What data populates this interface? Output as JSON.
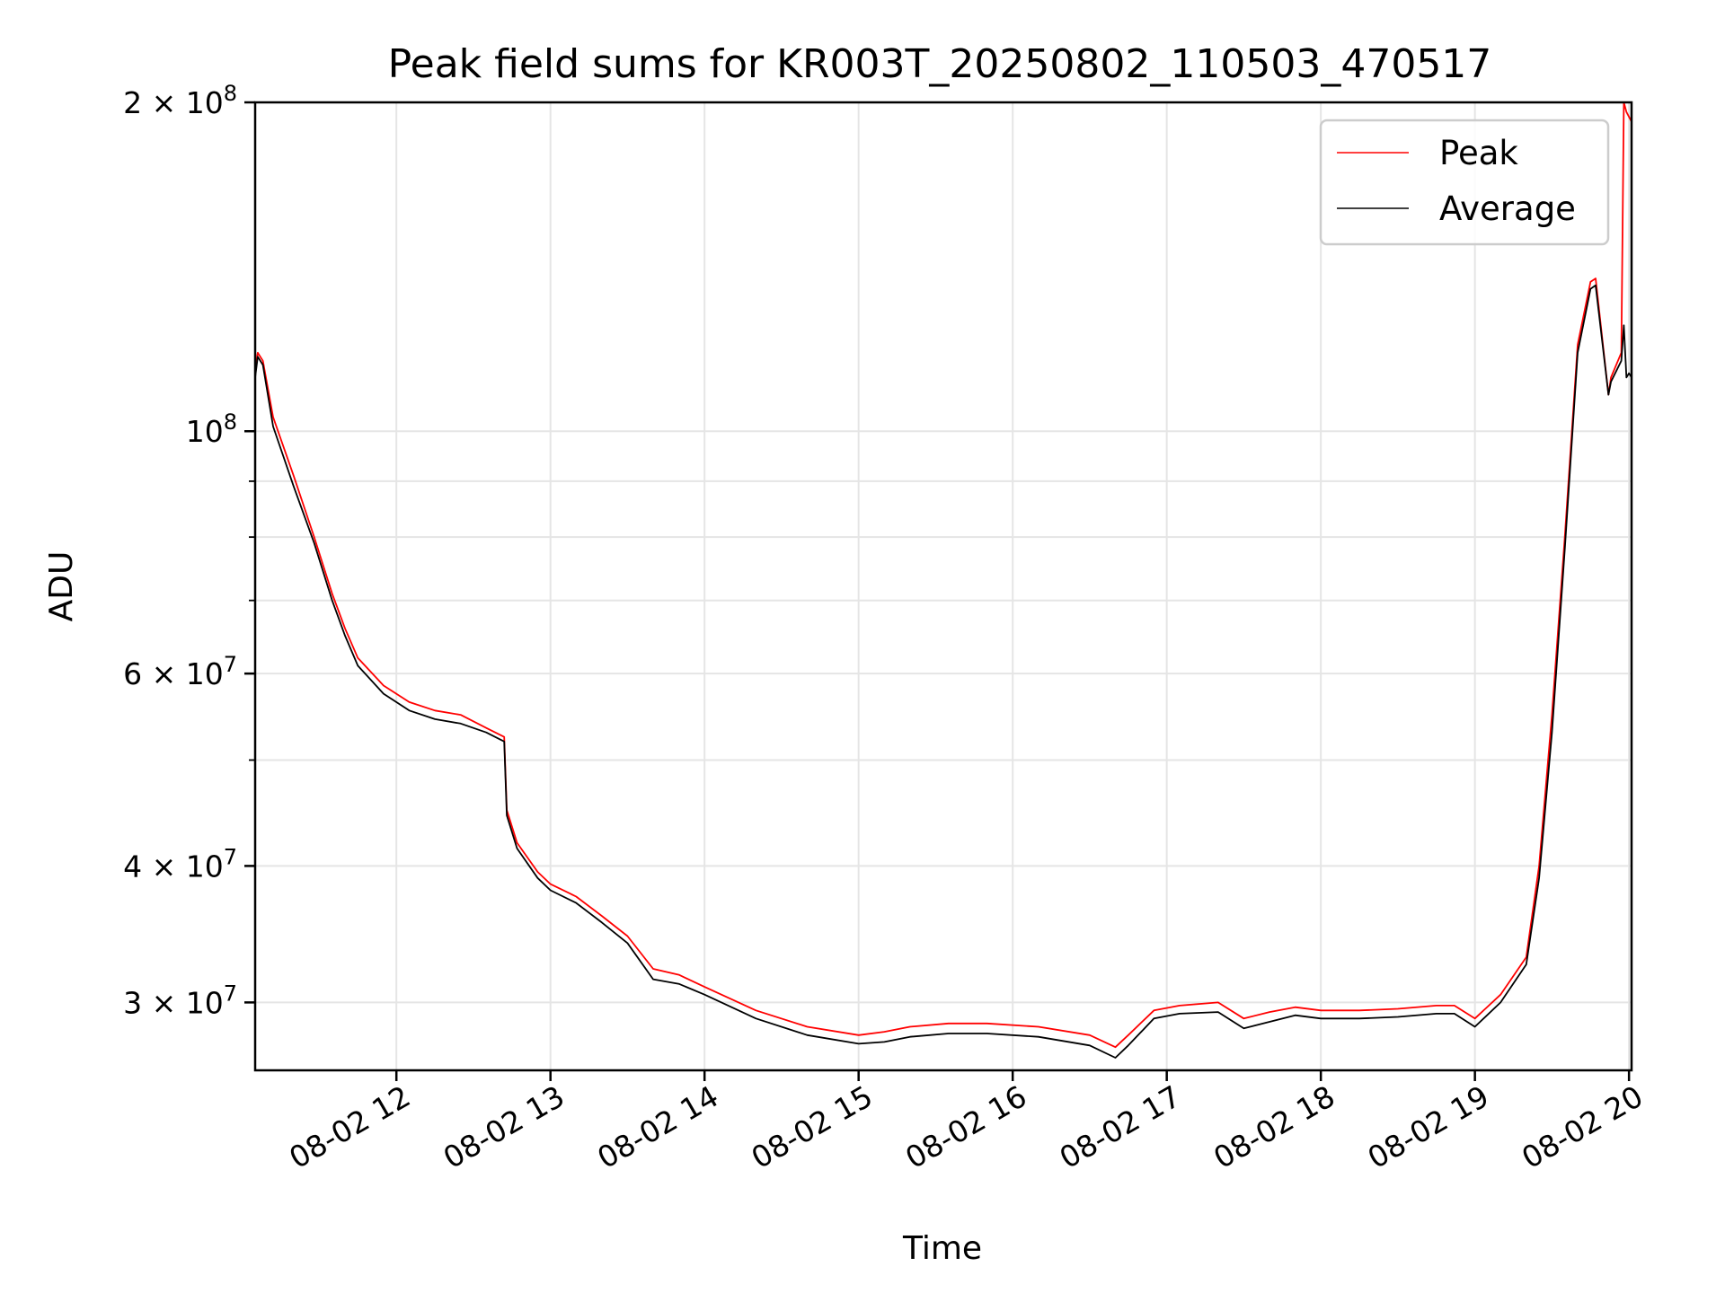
{
  "chart_data": {
    "type": "line",
    "title": "Peak field sums for KR003T_20250802_110503_470517",
    "xlabel": "Time",
    "ylabel": "ADU",
    "yscale": "log",
    "xlim": [
      "2025-08-02 11:05",
      "2025-08-02 20:01"
    ],
    "ylim": [
      26000000,
      200000000
    ],
    "grid": true,
    "legend_position": "top-right",
    "xticks": [
      {
        "value": "2025-08-02 12:00",
        "label": "08-02 12"
      },
      {
        "value": "2025-08-02 13:00",
        "label": "08-02 13"
      },
      {
        "value": "2025-08-02 14:00",
        "label": "08-02 14"
      },
      {
        "value": "2025-08-02 15:00",
        "label": "08-02 15"
      },
      {
        "value": "2025-08-02 16:00",
        "label": "08-02 16"
      },
      {
        "value": "2025-08-02 17:00",
        "label": "08-02 17"
      },
      {
        "value": "2025-08-02 18:00",
        "label": "08-02 18"
      },
      {
        "value": "2025-08-02 19:00",
        "label": "08-02 19"
      },
      {
        "value": "2025-08-02 20:00",
        "label": "08-02 20"
      }
    ],
    "yticks_major": [
      {
        "value": 30000000,
        "base": "3 × 10",
        "exp": "7"
      },
      {
        "value": 40000000,
        "base": "4 × 10",
        "exp": "7"
      },
      {
        "value": 60000000,
        "base": "6 × 10",
        "exp": "7"
      },
      {
        "value": 100000000,
        "base": "10",
        "exp": "8"
      },
      {
        "value": 200000000,
        "base": "2 × 10",
        "exp": "8"
      }
    ],
    "yticks_minor": [
      50000000,
      70000000,
      80000000,
      90000000
    ],
    "series": [
      {
        "name": "Peak",
        "color": "#ff0000",
        "x": [
          "2025-08-02 11:05",
          "2025-08-02 11:06",
          "2025-08-02 11:08",
          "2025-08-02 11:12",
          "2025-08-02 11:20",
          "2025-08-02 11:28",
          "2025-08-02 11:35",
          "2025-08-02 11:40",
          "2025-08-02 11:45",
          "2025-08-02 11:55",
          "2025-08-02 12:05",
          "2025-08-02 12:15",
          "2025-08-02 12:25",
          "2025-08-02 12:35",
          "2025-08-02 12:42",
          "2025-08-02 12:43",
          "2025-08-02 12:47",
          "2025-08-02 12:55",
          "2025-08-02 13:00",
          "2025-08-02 13:10",
          "2025-08-02 13:20",
          "2025-08-02 13:30",
          "2025-08-02 13:40",
          "2025-08-02 13:50",
          "2025-08-02 14:00",
          "2025-08-02 14:20",
          "2025-08-02 14:40",
          "2025-08-02 15:00",
          "2025-08-02 15:10",
          "2025-08-02 15:20",
          "2025-08-02 15:35",
          "2025-08-02 15:50",
          "2025-08-02 16:10",
          "2025-08-02 16:30",
          "2025-08-02 16:40",
          "2025-08-02 16:45",
          "2025-08-02 16:55",
          "2025-08-02 17:05",
          "2025-08-02 17:20",
          "2025-08-02 17:30",
          "2025-08-02 17:40",
          "2025-08-02 17:50",
          "2025-08-02 18:00",
          "2025-08-02 18:15",
          "2025-08-02 18:30",
          "2025-08-02 18:45",
          "2025-08-02 18:52",
          "2025-08-02 19:00",
          "2025-08-02 19:10",
          "2025-08-02 19:20",
          "2025-08-02 19:25",
          "2025-08-02 19:30",
          "2025-08-02 19:35",
          "2025-08-02 19:40",
          "2025-08-02 19:45",
          "2025-08-02 19:47",
          "2025-08-02 19:52",
          "2025-08-02 19:53",
          "2025-08-02 19:57",
          "2025-08-02 19:58",
          "2025-08-02 19:59",
          "2025-08-02 20:00",
          "2025-08-02 20:01"
        ],
        "y": [
          114000000,
          118000000,
          116000000,
          103000000,
          91000000,
          80000000,
          71000000,
          66000000,
          62000000,
          58500000,
          56500000,
          55500000,
          55000000,
          53500000,
          52500000,
          45000000,
          42000000,
          39500000,
          38500000,
          37500000,
          36000000,
          34500000,
          32200000,
          31800000,
          31000000,
          29500000,
          28500000,
          28000000,
          28200000,
          28500000,
          28700000,
          28700000,
          28500000,
          28000000,
          27300000,
          28000000,
          29500000,
          29800000,
          30000000,
          29000000,
          29400000,
          29700000,
          29500000,
          29500000,
          29600000,
          29800000,
          29800000,
          29000000,
          30500000,
          33000000,
          40000000,
          55000000,
          80000000,
          120000000,
          137000000,
          138000000,
          108000000,
          112000000,
          118000000,
          200000000,
          196000000,
          194000000,
          192000000
        ]
      },
      {
        "name": "Average",
        "color": "#000000",
        "x": [
          "2025-08-02 11:05",
          "2025-08-02 11:06",
          "2025-08-02 11:08",
          "2025-08-02 11:12",
          "2025-08-02 11:20",
          "2025-08-02 11:28",
          "2025-08-02 11:35",
          "2025-08-02 11:40",
          "2025-08-02 11:45",
          "2025-08-02 11:55",
          "2025-08-02 12:05",
          "2025-08-02 12:15",
          "2025-08-02 12:25",
          "2025-08-02 12:35",
          "2025-08-02 12:42",
          "2025-08-02 12:43",
          "2025-08-02 12:47",
          "2025-08-02 12:55",
          "2025-08-02 13:00",
          "2025-08-02 13:10",
          "2025-08-02 13:20",
          "2025-08-02 13:30",
          "2025-08-02 13:40",
          "2025-08-02 13:50",
          "2025-08-02 14:00",
          "2025-08-02 14:20",
          "2025-08-02 14:40",
          "2025-08-02 15:00",
          "2025-08-02 15:10",
          "2025-08-02 15:20",
          "2025-08-02 15:35",
          "2025-08-02 15:50",
          "2025-08-02 16:10",
          "2025-08-02 16:30",
          "2025-08-02 16:40",
          "2025-08-02 16:45",
          "2025-08-02 16:55",
          "2025-08-02 17:05",
          "2025-08-02 17:20",
          "2025-08-02 17:30",
          "2025-08-02 17:40",
          "2025-08-02 17:50",
          "2025-08-02 18:00",
          "2025-08-02 18:15",
          "2025-08-02 18:30",
          "2025-08-02 18:45",
          "2025-08-02 18:52",
          "2025-08-02 19:00",
          "2025-08-02 19:10",
          "2025-08-02 19:20",
          "2025-08-02 19:25",
          "2025-08-02 19:30",
          "2025-08-02 19:35",
          "2025-08-02 19:40",
          "2025-08-02 19:45",
          "2025-08-02 19:47",
          "2025-08-02 19:52",
          "2025-08-02 19:53",
          "2025-08-02 19:57",
          "2025-08-02 19:58",
          "2025-08-02 19:59",
          "2025-08-02 20:00",
          "2025-08-02 20:01"
        ],
        "y": [
          112000000,
          117000000,
          115000000,
          101000000,
          89000000,
          79000000,
          70000000,
          65000000,
          61000000,
          57500000,
          55500000,
          54500000,
          54000000,
          53000000,
          52000000,
          44500000,
          41500000,
          39000000,
          38000000,
          37000000,
          35500000,
          34000000,
          31500000,
          31200000,
          30500000,
          29000000,
          28000000,
          27500000,
          27600000,
          27900000,
          28100000,
          28100000,
          27900000,
          27400000,
          26700000,
          27400000,
          29000000,
          29300000,
          29400000,
          28400000,
          28800000,
          29200000,
          29000000,
          29000000,
          29100000,
          29300000,
          29300000,
          28500000,
          30000000,
          32500000,
          39000000,
          53000000,
          78000000,
          118000000,
          135000000,
          136000000,
          108000000,
          111000000,
          116000000,
          125000000,
          112000000,
          113000000,
          112000000
        ]
      }
    ]
  }
}
